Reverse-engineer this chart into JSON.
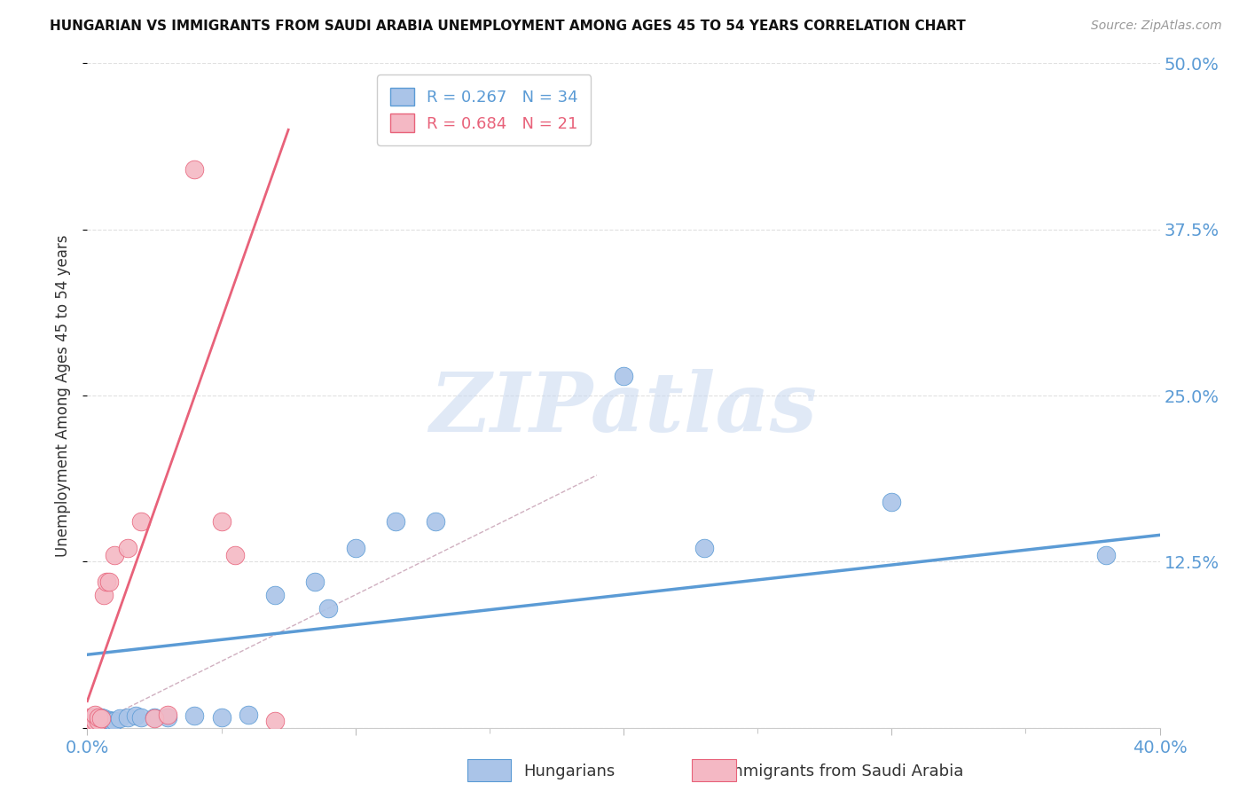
{
  "title": "HUNGARIAN VS IMMIGRANTS FROM SAUDI ARABIA UNEMPLOYMENT AMONG AGES 45 TO 54 YEARS CORRELATION CHART",
  "source": "Source: ZipAtlas.com",
  "ylabel": "Unemployment Among Ages 45 to 54 years",
  "xlim": [
    0.0,
    0.4
  ],
  "ylim": [
    0.0,
    0.5
  ],
  "yticks": [
    0.0,
    0.125,
    0.25,
    0.375,
    0.5
  ],
  "ytick_labels_right": [
    "",
    "12.5%",
    "25.0%",
    "37.5%",
    "50.0%"
  ],
  "xticks": [
    0.0,
    0.1,
    0.2,
    0.3,
    0.4
  ],
  "xtick_labels": [
    "0.0%",
    "",
    "",
    "",
    "40.0%"
  ],
  "legend_entry_blue": "R = 0.267   N = 34",
  "legend_entry_pink": "R = 0.684   N = 21",
  "blue_scatter_x": [
    0.001,
    0.002,
    0.002,
    0.003,
    0.003,
    0.004,
    0.004,
    0.005,
    0.005,
    0.006,
    0.006,
    0.007,
    0.008,
    0.009,
    0.01,
    0.012,
    0.015,
    0.018,
    0.02,
    0.025,
    0.03,
    0.04,
    0.05,
    0.06,
    0.07,
    0.085,
    0.09,
    0.1,
    0.115,
    0.13,
    0.2,
    0.23,
    0.3,
    0.38
  ],
  "blue_scatter_y": [
    0.005,
    0.005,
    0.008,
    0.005,
    0.008,
    0.005,
    0.008,
    0.005,
    0.008,
    0.005,
    0.007,
    0.006,
    0.006,
    0.005,
    0.005,
    0.007,
    0.008,
    0.009,
    0.008,
    0.008,
    0.008,
    0.009,
    0.008,
    0.01,
    0.1,
    0.11,
    0.09,
    0.135,
    0.155,
    0.155,
    0.265,
    0.135,
    0.17,
    0.13
  ],
  "pink_scatter_x": [
    0.001,
    0.001,
    0.002,
    0.002,
    0.003,
    0.003,
    0.004,
    0.004,
    0.005,
    0.006,
    0.007,
    0.008,
    0.01,
    0.015,
    0.02,
    0.025,
    0.03,
    0.04,
    0.05,
    0.055,
    0.07
  ],
  "pink_scatter_y": [
    0.005,
    0.008,
    0.005,
    0.008,
    0.005,
    0.01,
    0.005,
    0.008,
    0.007,
    0.1,
    0.11,
    0.11,
    0.13,
    0.135,
    0.155,
    0.007,
    0.01,
    0.42,
    0.155,
    0.13,
    0.005
  ],
  "blue_line_x": [
    0.0,
    0.4
  ],
  "blue_line_y": [
    0.055,
    0.145
  ],
  "pink_line_x": [
    0.0,
    0.075
  ],
  "pink_line_y": [
    0.02,
    0.45
  ],
  "diag_line_x": [
    0.0,
    0.19
  ],
  "diag_line_y": [
    0.0,
    0.19
  ],
  "blue_color": "#5b9bd5",
  "pink_color": "#e8627a",
  "blue_scatter_color": "#aac4e8",
  "pink_scatter_color": "#f4b8c4",
  "watermark": "ZIPatlas",
  "background_color": "#ffffff",
  "grid_color": "#e0e0e0"
}
